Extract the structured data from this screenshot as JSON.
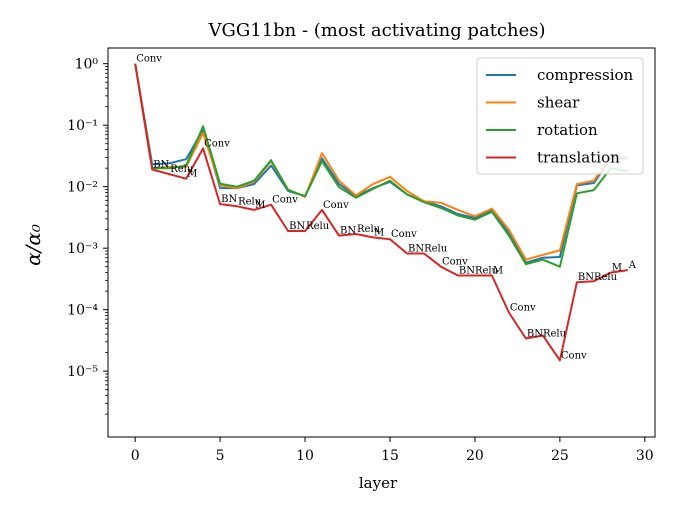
{
  "chart_data": {
    "type": "line",
    "title": "VGG11bn - (most activating patches)",
    "xlabel": "layer",
    "ylabel": "α/α₀",
    "yscale": "log",
    "xlim": [
      -1.6,
      30.6
    ],
    "ylim": [
      8.5e-07,
      1.8
    ],
    "xticks": [
      0,
      5,
      10,
      15,
      20,
      25,
      30
    ],
    "xtick_labels": [
      "0",
      "5",
      "10",
      "15",
      "20",
      "25",
      "30"
    ],
    "yticks": [
      1e-05,
      0.0001,
      0.001,
      0.01,
      0.1,
      1
    ],
    "ytick_labels": [
      "10⁻⁵",
      "10⁻⁴",
      "10⁻³",
      "10⁻²",
      "10⁻¹",
      "10⁰"
    ],
    "legend_position": "top-right",
    "x": [
      0,
      1,
      2,
      3,
      4,
      5,
      6,
      7,
      8,
      9,
      10,
      11,
      12,
      13,
      14,
      15,
      16,
      17,
      18,
      19,
      20,
      21,
      22,
      23,
      24,
      25,
      26,
      27,
      28,
      29
    ],
    "series": [
      {
        "name": "compression",
        "color": "#1f77b4",
        "values": [
          1.0,
          0.023,
          0.024,
          0.028,
          0.085,
          0.0095,
          0.0095,
          0.011,
          0.022,
          0.0085,
          0.007,
          0.029,
          0.011,
          0.007,
          0.0095,
          0.012,
          0.0075,
          0.0058,
          0.0048,
          0.0036,
          0.0031,
          0.0042,
          0.0018,
          0.00058,
          0.0007,
          0.00072,
          0.0105,
          0.0115,
          0.029,
          0.029
        ]
      },
      {
        "name": "shear",
        "color": "#ff7f0e",
        "values": [
          1.0,
          0.02,
          0.021,
          0.021,
          0.075,
          0.0105,
          0.0095,
          0.012,
          0.026,
          0.009,
          0.0068,
          0.035,
          0.0125,
          0.0072,
          0.011,
          0.0145,
          0.0085,
          0.0058,
          0.0055,
          0.0042,
          0.0033,
          0.0044,
          0.002,
          0.00065,
          0.00078,
          0.00092,
          0.011,
          0.0125,
          0.031,
          0.03
        ]
      },
      {
        "name": "rotation",
        "color": "#2ca02c",
        "values": [
          1.0,
          0.02,
          0.02,
          0.022,
          0.096,
          0.0112,
          0.01,
          0.0125,
          0.027,
          0.0088,
          0.007,
          0.026,
          0.0098,
          0.0066,
          0.0092,
          0.0125,
          0.0075,
          0.0056,
          0.0045,
          0.0034,
          0.0029,
          0.0039,
          0.0016,
          0.00055,
          0.00065,
          0.0005,
          0.0078,
          0.0088,
          0.02,
          0.018
        ]
      },
      {
        "name": "translation",
        "color": "#d62728",
        "values": [
          1.0,
          0.019,
          0.016,
          0.0135,
          0.042,
          0.0052,
          0.0048,
          0.0042,
          0.0051,
          0.0019,
          0.0019,
          0.0042,
          0.0016,
          0.0017,
          0.0015,
          0.0014,
          0.00082,
          0.00082,
          0.0005,
          0.00036,
          0.00036,
          0.00036,
          9e-05,
          3.4e-05,
          3.8e-05,
          1.5e-05,
          0.00028,
          0.00029,
          0.0004,
          0.00044
        ]
      }
    ],
    "annotations": [
      "Conv",
      "BN",
      "Relu",
      "M",
      "Conv",
      "BN",
      "Relu",
      "M",
      "Conv",
      "BN",
      "Relu",
      "Conv",
      "BN",
      "Relu",
      "M",
      "Conv",
      "BNRelu",
      "Conv",
      "BNRelu",
      "M",
      "Conv",
      "BNRelu",
      "Conv",
      "BNRelu",
      "M",
      "A"
    ],
    "annotation_layers": [
      0,
      1,
      2,
      3,
      4,
      5,
      6,
      7,
      8,
      9,
      10,
      11,
      12,
      13,
      14,
      15,
      16,
      18,
      19,
      21,
      22,
      23,
      25,
      26,
      28,
      29
    ]
  }
}
